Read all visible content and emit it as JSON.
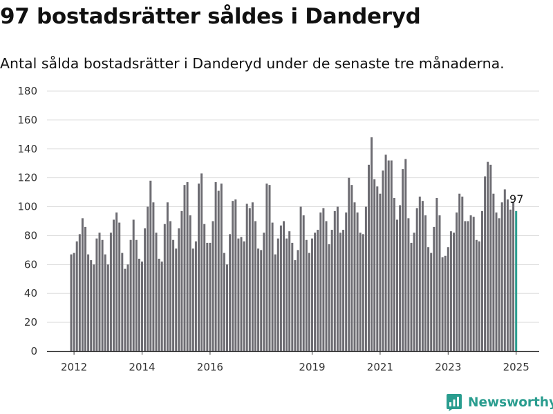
{
  "title": "97 bostadsrätter såldes i Danderyd",
  "subtitle": "Antal sålda bostadsrätter i Danderyd under de senaste tre månaderna.",
  "brand": {
    "name": "Newsworthy",
    "icon": "newsworthy-logo-icon"
  },
  "colors": {
    "bar": "#6d6c72",
    "highlight": "#2a9d8f",
    "grid": "#dddddd",
    "axis": "#333333"
  },
  "chart_data": {
    "type": "bar",
    "title": "",
    "xlabel": "",
    "ylabel": "",
    "ylim": [
      0,
      180
    ],
    "yticks": [
      0,
      20,
      40,
      60,
      80,
      100,
      120,
      140,
      160,
      180
    ],
    "xticks": [
      {
        "label": "2012",
        "date": "2012-01"
      },
      {
        "label": "2014",
        "date": "2014-01"
      },
      {
        "label": "2016",
        "date": "2016-01"
      },
      {
        "label": "2019",
        "date": "2019-01"
      },
      {
        "label": "2021",
        "date": "2021-01"
      },
      {
        "label": "2023",
        "date": "2023-01"
      },
      {
        "label": "2025",
        "date": "2025-01"
      }
    ],
    "grid": true,
    "legend": "none",
    "start": "2011-12",
    "frequency": "monthly",
    "values": [
      67,
      68,
      76,
      81,
      92,
      86,
      67,
      63,
      60,
      78,
      82,
      77,
      67,
      60,
      82,
      91,
      96,
      89,
      68,
      57,
      60,
      77,
      91,
      77,
      64,
      62,
      85,
      100,
      118,
      103,
      82,
      64,
      62,
      88,
      103,
      90,
      77,
      71,
      85,
      97,
      115,
      117,
      94,
      71,
      76,
      116,
      123,
      88,
      75,
      75,
      90,
      117,
      111,
      116,
      68,
      60,
      81,
      104,
      105,
      78,
      79,
      76,
      102,
      99,
      103,
      90,
      71,
      70,
      82,
      116,
      115,
      89,
      67,
      78,
      87,
      90,
      78,
      83,
      75,
      63,
      70,
      100,
      94,
      77,
      68,
      78,
      82,
      84,
      96,
      99,
      90,
      74,
      84,
      97,
      100,
      82,
      84,
      96,
      120,
      115,
      103,
      96,
      82,
      81,
      100,
      129,
      148,
      119,
      114,
      109,
      125,
      136,
      132,
      132,
      106,
      91,
      101,
      126,
      133,
      92,
      75,
      82,
      99,
      107,
      104,
      94,
      72,
      68,
      86,
      106,
      94,
      65,
      66,
      72,
      83,
      82,
      96,
      109,
      107,
      90,
      90,
      94,
      93,
      77,
      76,
      97,
      121,
      131,
      129,
      109,
      96,
      92,
      103,
      112,
      105,
      98,
      103,
      97
    ],
    "highlight": {
      "date": "2025-01",
      "value": 97,
      "label": "97"
    }
  }
}
